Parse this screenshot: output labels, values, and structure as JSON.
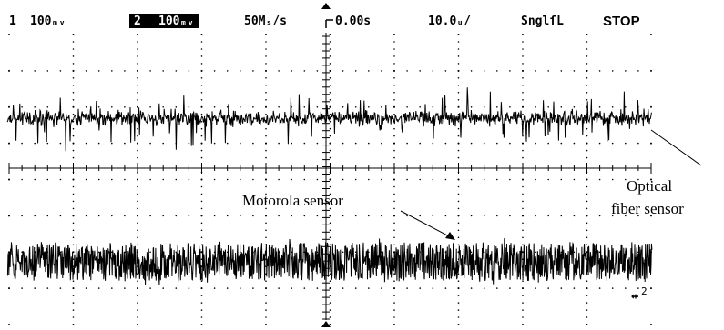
{
  "status_bar": {
    "ch1_number": "1",
    "ch1_scale": "100ₘᵥ",
    "ch2_number": "2",
    "ch2_scale": "100ₘᵥ",
    "sample_rate": "50Mₛ/s",
    "trigger_position": "0.00s",
    "timebase": "10.0ᵤ/",
    "trigger_mode": "SnglſL",
    "run_state": "STOP"
  },
  "annotations": {
    "motorola_label": "Motorola sensor",
    "optical_label_line1": "Optical",
    "optical_label_line2": "fiber sensor"
  },
  "markers": {
    "ch2_ground": "ⅵ2"
  },
  "traces": {
    "ch1_description": "noisy signal, wider amplitude",
    "ch2_description": "dense noise band"
  },
  "colors": {
    "trace": "#000000",
    "grid": "#000000",
    "background": "#ffffff",
    "highlight": "#000000"
  }
}
